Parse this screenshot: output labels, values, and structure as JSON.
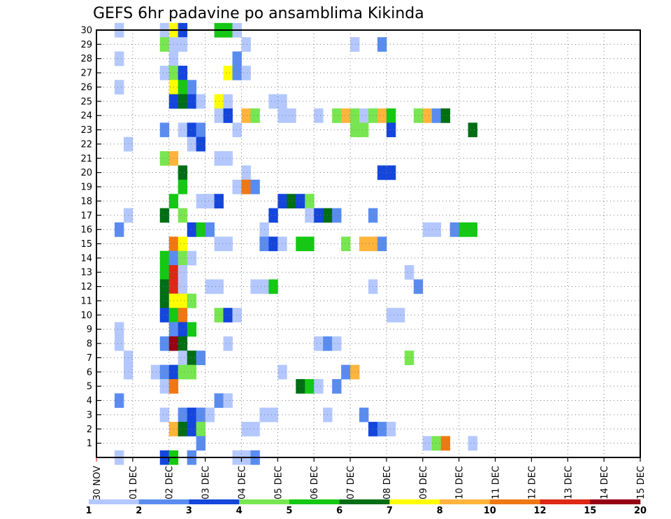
{
  "chart_data": {
    "type": "heatmap",
    "title": "GEFS 6hr padavine po ansamblima Kikinda",
    "xlabel": "",
    "ylabel": "",
    "grid": true,
    "legend": "bottom",
    "y_ticks": [
      "1",
      "2",
      "3",
      "4",
      "5",
      "6",
      "7",
      "8",
      "9",
      "10",
      "11",
      "12",
      "13",
      "14",
      "15",
      "16",
      "17",
      "18",
      "19",
      "20",
      "21",
      "22",
      "23",
      "24",
      "25",
      "26",
      "27",
      "28",
      "29",
      "30"
    ],
    "x_ticks": [
      "30 NOV",
      "01 DEC",
      "02 DEC",
      "03 DEC",
      "04 DEC",
      "05 DEC",
      "06 DEC",
      "07 DEC",
      "08 DEC",
      "09 DEC",
      "10 DEC",
      "11 DEC",
      "12 DEC",
      "13 DEC",
      "14 DEC",
      "15 DEC"
    ],
    "x_range": [
      "30 NOV 00UTC",
      "15 DEC 00UTC"
    ],
    "time_step_hours": 6,
    "color_scale": {
      "labels": [
        "1",
        "2",
        "3",
        "4",
        "5",
        "6",
        "7",
        "8",
        "10",
        "12",
        "15",
        "20"
      ],
      "colors": [
        "#b4c8ff",
        "#5a8cf0",
        "#1446dc",
        "#78e650",
        "#14c814",
        "#006e14",
        "#ffff00",
        "#ffb43c",
        "#f07814",
        "#dc2814",
        "#960014"
      ]
    },
    "cells": [
      [
        30,
        2,
        1
      ],
      [
        30,
        7,
        1
      ],
      [
        30,
        8,
        7
      ],
      [
        30,
        9,
        3
      ],
      [
        30,
        13,
        5
      ],
      [
        30,
        14,
        5
      ],
      [
        30,
        15,
        1
      ],
      [
        29,
        7,
        4
      ],
      [
        29,
        8,
        1
      ],
      [
        29,
        9,
        1
      ],
      [
        29,
        16,
        1
      ],
      [
        29,
        28,
        1
      ],
      [
        29,
        31,
        2
      ],
      [
        28,
        2,
        1
      ],
      [
        28,
        8,
        1
      ],
      [
        28,
        15,
        2
      ],
      [
        27,
        7,
        1
      ],
      [
        27,
        8,
        4
      ],
      [
        27,
        9,
        3
      ],
      [
        27,
        14,
        7
      ],
      [
        27,
        15,
        2
      ],
      [
        27,
        16,
        1
      ],
      [
        26,
        2,
        1
      ],
      [
        26,
        8,
        7
      ],
      [
        26,
        9,
        5
      ],
      [
        26,
        10,
        2
      ],
      [
        25,
        8,
        3
      ],
      [
        25,
        9,
        6
      ],
      [
        25,
        10,
        3
      ],
      [
        25,
        11,
        1
      ],
      [
        25,
        13,
        7
      ],
      [
        25,
        14,
        1
      ],
      [
        25,
        19,
        1
      ],
      [
        25,
        20,
        1
      ],
      [
        24,
        13,
        1
      ],
      [
        24,
        14,
        3
      ],
      [
        24,
        16,
        8
      ],
      [
        24,
        17,
        4
      ],
      [
        24,
        20,
        1
      ],
      [
        24,
        21,
        1
      ],
      [
        24,
        24,
        1
      ],
      [
        24,
        26,
        4
      ],
      [
        24,
        27,
        8
      ],
      [
        24,
        28,
        4
      ],
      [
        24,
        29,
        1
      ],
      [
        24,
        30,
        4
      ],
      [
        24,
        31,
        8
      ],
      [
        24,
        32,
        5
      ],
      [
        24,
        35,
        4
      ],
      [
        24,
        36,
        8
      ],
      [
        24,
        37,
        2
      ],
      [
        24,
        38,
        6
      ],
      [
        23,
        7,
        2
      ],
      [
        23,
        9,
        1
      ],
      [
        23,
        10,
        3
      ],
      [
        23,
        11,
        2
      ],
      [
        23,
        15,
        1
      ],
      [
        23,
        28,
        4
      ],
      [
        23,
        29,
        4
      ],
      [
        23,
        32,
        3
      ],
      [
        23,
        41,
        6
      ],
      [
        22,
        3,
        1
      ],
      [
        22,
        10,
        1
      ],
      [
        22,
        11,
        3
      ],
      [
        21,
        7,
        4
      ],
      [
        21,
        8,
        8
      ],
      [
        21,
        13,
        1
      ],
      [
        21,
        14,
        1
      ],
      [
        20,
        9,
        6
      ],
      [
        20,
        16,
        1
      ],
      [
        20,
        31,
        3
      ],
      [
        20,
        32,
        3
      ],
      [
        19,
        9,
        5
      ],
      [
        19,
        15,
        1
      ],
      [
        19,
        16,
        9
      ],
      [
        19,
        17,
        2
      ],
      [
        18,
        8,
        5
      ],
      [
        18,
        11,
        1
      ],
      [
        18,
        12,
        1
      ],
      [
        18,
        13,
        3
      ],
      [
        18,
        20,
        3
      ],
      [
        18,
        21,
        6
      ],
      [
        18,
        22,
        3
      ],
      [
        18,
        23,
        4
      ],
      [
        17,
        3,
        1
      ],
      [
        17,
        7,
        6
      ],
      [
        17,
        9,
        4
      ],
      [
        17,
        19,
        3
      ],
      [
        17,
        23,
        1
      ],
      [
        17,
        24,
        3
      ],
      [
        17,
        25,
        6
      ],
      [
        17,
        26,
        2
      ],
      [
        17,
        30,
        2
      ],
      [
        16,
        2,
        2
      ],
      [
        16,
        10,
        3
      ],
      [
        16,
        11,
        5
      ],
      [
        16,
        12,
        2
      ],
      [
        16,
        18,
        1
      ],
      [
        16,
        36,
        1
      ],
      [
        16,
        37,
        1
      ],
      [
        16,
        39,
        2
      ],
      [
        16,
        40,
        5
      ],
      [
        16,
        41,
        5
      ],
      [
        15,
        8,
        9
      ],
      [
        15,
        9,
        7
      ],
      [
        15,
        13,
        1
      ],
      [
        15,
        14,
        1
      ],
      [
        15,
        18,
        2
      ],
      [
        15,
        19,
        3
      ],
      [
        15,
        20,
        1
      ],
      [
        15,
        22,
        5
      ],
      [
        15,
        23,
        5
      ],
      [
        15,
        27,
        4
      ],
      [
        15,
        29,
        8
      ],
      [
        15,
        30,
        8
      ],
      [
        15,
        31,
        2
      ],
      [
        14,
        7,
        5
      ],
      [
        14,
        8,
        2
      ],
      [
        14,
        9,
        4
      ],
      [
        14,
        10,
        1
      ],
      [
        13,
        7,
        5
      ],
      [
        13,
        8,
        10
      ],
      [
        13,
        9,
        1
      ],
      [
        13,
        34,
        1
      ],
      [
        12,
        7,
        6
      ],
      [
        12,
        8,
        10
      ],
      [
        12,
        9,
        1
      ],
      [
        12,
        12,
        1
      ],
      [
        12,
        13,
        1
      ],
      [
        12,
        17,
        1
      ],
      [
        12,
        18,
        1
      ],
      [
        12,
        19,
        5
      ],
      [
        12,
        30,
        1
      ],
      [
        12,
        35,
        2
      ],
      [
        11,
        7,
        6
      ],
      [
        11,
        8,
        7
      ],
      [
        11,
        9,
        7
      ],
      [
        11,
        10,
        4
      ],
      [
        10,
        7,
        3
      ],
      [
        10,
        8,
        5
      ],
      [
        10,
        9,
        9
      ],
      [
        10,
        13,
        4
      ],
      [
        10,
        14,
        3
      ],
      [
        10,
        15,
        1
      ],
      [
        10,
        32,
        1
      ],
      [
        10,
        33,
        1
      ],
      [
        9,
        2,
        1
      ],
      [
        9,
        8,
        2
      ],
      [
        9,
        9,
        3
      ],
      [
        9,
        10,
        5
      ],
      [
        8,
        2,
        1
      ],
      [
        8,
        7,
        2
      ],
      [
        8,
        8,
        11
      ],
      [
        8,
        9,
        6
      ],
      [
        8,
        14,
        1
      ],
      [
        8,
        24,
        1
      ],
      [
        8,
        25,
        2
      ],
      [
        8,
        26,
        1
      ],
      [
        7,
        3,
        1
      ],
      [
        7,
        9,
        1
      ],
      [
        7,
        10,
        6
      ],
      [
        7,
        11,
        2
      ],
      [
        7,
        34,
        4
      ],
      [
        6,
        3,
        1
      ],
      [
        6,
        6,
        1
      ],
      [
        6,
        7,
        2
      ],
      [
        6,
        8,
        3
      ],
      [
        6,
        9,
        4
      ],
      [
        6,
        10,
        4
      ],
      [
        6,
        20,
        1
      ],
      [
        6,
        27,
        2
      ],
      [
        6,
        28,
        8
      ],
      [
        5,
        7,
        1
      ],
      [
        5,
        8,
        9
      ],
      [
        5,
        22,
        6
      ],
      [
        5,
        23,
        5
      ],
      [
        5,
        24,
        1
      ],
      [
        5,
        26,
        2
      ],
      [
        4,
        2,
        2
      ],
      [
        4,
        13,
        2
      ],
      [
        4,
        14,
        1
      ],
      [
        3,
        7,
        1
      ],
      [
        3,
        9,
        2
      ],
      [
        3,
        10,
        3
      ],
      [
        3,
        11,
        2
      ],
      [
        3,
        12,
        1
      ],
      [
        3,
        18,
        1
      ],
      [
        3,
        19,
        1
      ],
      [
        3,
        25,
        1
      ],
      [
        3,
        29,
        2
      ],
      [
        2,
        8,
        8
      ],
      [
        2,
        9,
        6
      ],
      [
        2,
        10,
        3
      ],
      [
        2,
        11,
        4
      ],
      [
        2,
        16,
        1
      ],
      [
        2,
        17,
        1
      ],
      [
        2,
        30,
        3
      ],
      [
        2,
        31,
        2
      ],
      [
        2,
        32,
        1
      ],
      [
        1,
        11,
        2
      ],
      [
        1,
        36,
        1
      ],
      [
        1,
        37,
        4
      ],
      [
        1,
        38,
        9
      ],
      [
        1,
        41,
        1
      ],
      [
        0,
        2,
        1
      ],
      [
        0,
        7,
        3
      ],
      [
        0,
        8,
        5
      ],
      [
        0,
        10,
        2
      ],
      [
        0,
        15,
        1
      ],
      [
        0,
        16,
        1
      ],
      [
        0,
        17,
        2
      ]
    ]
  }
}
